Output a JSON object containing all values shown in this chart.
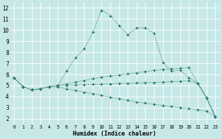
{
  "xlabel": "Humidex (Indice chaleur)",
  "x_ticks": [
    0,
    1,
    2,
    3,
    4,
    5,
    6,
    7,
    8,
    9,
    10,
    11,
    12,
    13,
    14,
    15,
    16,
    17,
    18,
    19,
    20,
    21,
    22,
    23
  ],
  "y_ticks": [
    2,
    3,
    4,
    5,
    6,
    7,
    8,
    9,
    10,
    11,
    12
  ],
  "xlim": [
    -0.5,
    23.5
  ],
  "ylim": [
    1.5,
    12.5
  ],
  "bg_color": "#c8e8e8",
  "line_color": "#1a6b5a",
  "grid_color": "#ffffff",
  "series": [
    [
      5.7,
      4.9,
      4.6,
      4.7,
      4.9,
      5.0,
      6.3,
      7.5,
      8.3,
      9.8,
      11.8,
      11.3,
      10.4,
      9.6,
      10.2,
      10.2,
      9.7,
      7.1,
      6.3,
      6.4,
      5.7,
      5.2,
      3.9,
      2.2
    ],
    [
      5.7,
      4.9,
      4.6,
      4.7,
      4.9,
      5.0,
      5.15,
      5.3,
      5.45,
      5.6,
      5.75,
      5.85,
      5.95,
      6.05,
      6.15,
      6.25,
      6.35,
      6.45,
      6.5,
      6.55,
      6.6,
      5.2,
      3.9,
      2.2
    ],
    [
      5.7,
      4.9,
      4.6,
      4.7,
      4.9,
      5.0,
      5.02,
      5.04,
      5.06,
      5.1,
      5.12,
      5.15,
      5.18,
      5.2,
      5.22,
      5.25,
      5.28,
      5.3,
      5.35,
      5.38,
      5.42,
      5.2,
      3.9,
      2.2
    ],
    [
      5.7,
      4.9,
      4.6,
      4.7,
      4.9,
      4.85,
      4.7,
      4.55,
      4.4,
      4.25,
      4.1,
      3.95,
      3.8,
      3.65,
      3.5,
      3.4,
      3.3,
      3.2,
      3.1,
      3.0,
      2.9,
      2.8,
      2.7,
      2.2
    ]
  ]
}
